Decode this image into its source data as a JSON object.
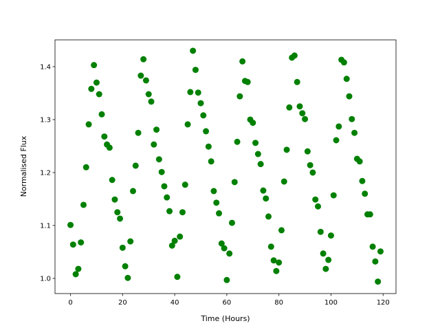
{
  "chart_data": {
    "type": "scatter",
    "xlabel": "Time (Hours)",
    "ylabel": "Normalised Flux",
    "color": "#008000",
    "x": [
      0,
      1,
      2,
      3,
      4,
      5,
      6,
      7,
      8,
      9,
      10,
      11,
      12,
      13,
      14,
      15,
      16,
      17,
      18,
      19,
      20,
      21,
      22,
      23,
      24,
      25,
      26,
      27,
      28,
      29,
      30,
      31,
      32,
      33,
      34,
      35,
      36,
      37,
      38,
      39,
      40,
      41,
      42,
      43,
      44,
      45,
      46,
      47,
      48,
      49,
      50,
      51,
      52,
      53,
      54,
      55,
      56,
      57,
      58,
      59,
      60,
      61,
      62,
      63,
      64,
      65,
      66,
      67,
      68,
      69,
      70,
      71,
      72,
      73,
      74,
      75,
      76,
      77,
      78,
      79,
      80,
      81,
      82,
      83,
      84,
      85,
      86,
      87,
      88,
      89,
      90,
      91,
      92,
      93,
      94,
      95,
      96,
      97,
      98,
      99,
      100,
      101,
      102,
      103,
      104,
      105,
      106,
      107,
      108,
      109,
      110,
      111,
      112,
      113,
      114,
      115,
      116,
      117,
      118,
      119
    ],
    "values": [
      1.101,
      1.064,
      1.008,
      1.018,
      1.068,
      1.139,
      1.21,
      1.291,
      1.358,
      1.403,
      1.37,
      1.348,
      1.31,
      1.268,
      1.253,
      1.247,
      1.186,
      1.149,
      1.125,
      1.113,
      1.058,
      1.023,
      1.001,
      1.07,
      1.165,
      1.213,
      1.275,
      1.383,
      1.414,
      1.374,
      1.348,
      1.334,
      1.253,
      1.281,
      1.225,
      1.201,
      1.174,
      1.153,
      1.127,
      1.062,
      1.071,
      1.003,
      1.079,
      1.125,
      1.177,
      1.291,
      1.352,
      1.43,
      1.394,
      1.351,
      1.331,
      1.308,
      1.278,
      1.249,
      1.221,
      1.165,
      1.143,
      1.123,
      1.066,
      1.057,
      0.997,
      1.047,
      1.105,
      1.182,
      1.258,
      1.344,
      1.41,
      1.373,
      1.371,
      1.3,
      1.294,
      1.256,
      1.235,
      1.216,
      1.166,
      1.151,
      1.117,
      1.06,
      1.034,
      1.014,
      1.03,
      1.091,
      1.183,
      1.243,
      1.323,
      1.417,
      1.421,
      1.371,
      1.325,
      1.312,
      1.301,
      1.24,
      1.214,
      1.2,
      1.149,
      1.136,
      1.088,
      1.047,
      1.018,
      1.035,
      1.081,
      1.157,
      1.261,
      1.287,
      1.413,
      1.408,
      1.377,
      1.344,
      1.301,
      1.275,
      1.226,
      1.221,
      1.184,
      1.16,
      1.121,
      1.121,
      1.06,
      1.032,
      0.994,
      1.051
    ],
    "xlim": [
      -5.95,
      124.95
    ],
    "xticks": [
      0,
      20,
      40,
      60,
      80,
      100,
      120
    ],
    "ylim": [
      0.9714,
      1.4506
    ],
    "yticks": [
      {
        "value": 1,
        "label": "1.0"
      },
      1.1,
      1.2,
      1.3,
      1.4
    ],
    "grid": false
  }
}
